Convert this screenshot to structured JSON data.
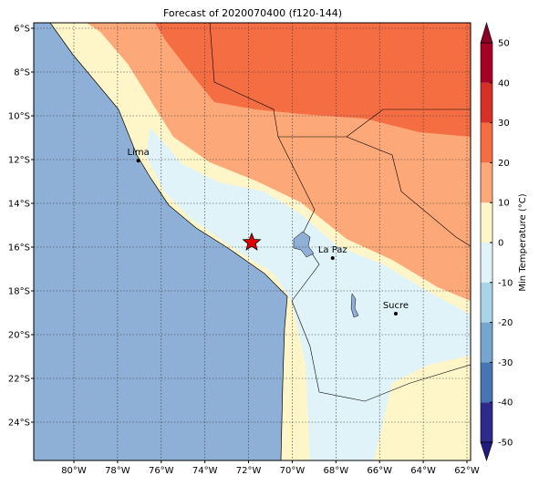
{
  "title": "Forecast of 2020070400 (f120-144)",
  "map": {
    "lon_ticks": [
      {
        "value": -80,
        "label": "80°W"
      },
      {
        "value": -78,
        "label": "78°W"
      },
      {
        "value": -76,
        "label": "76°W"
      },
      {
        "value": -74,
        "label": "74°W"
      },
      {
        "value": -72,
        "label": "72°W"
      },
      {
        "value": -70,
        "label": "70°W"
      },
      {
        "value": -68,
        "label": "68°W"
      },
      {
        "value": -66,
        "label": "66°W"
      },
      {
        "value": -64,
        "label": "64°W"
      },
      {
        "value": -62,
        "label": "62°W"
      }
    ],
    "lat_ticks": [
      {
        "value": -6,
        "label": "6°S"
      },
      {
        "value": -8,
        "label": "8°S"
      },
      {
        "value": -10,
        "label": "10°S"
      },
      {
        "value": -12,
        "label": "12°S"
      },
      {
        "value": -14,
        "label": "14°S"
      },
      {
        "value": -16,
        "label": "16°S"
      },
      {
        "value": -18,
        "label": "18°S"
      },
      {
        "value": -20,
        "label": "20°S"
      },
      {
        "value": -22,
        "label": "22°S"
      },
      {
        "value": -24,
        "label": "24°S"
      }
    ],
    "cities": [
      {
        "name": "Lima",
        "lon": -77.05,
        "lat": -12.05
      },
      {
        "name": "La Paz",
        "lon": -68.15,
        "lat": -16.5
      },
      {
        "name": "Sucre",
        "lon": -65.26,
        "lat": -19.04
      }
    ]
  },
  "colorbar": {
    "label": "Min Temperature (°C)",
    "ticks": [
      -50,
      -40,
      -30,
      -20,
      -10,
      0,
      10,
      20,
      30,
      40,
      50
    ],
    "colors": [
      "#2c2a8a",
      "#4575b4",
      "#74a6cf",
      "#a9d3e6",
      "#e0f3f8",
      "#fef6c9",
      "#fca878",
      "#f46d43",
      "#d73027",
      "#a50026"
    ],
    "extend_low": "#1f1b80",
    "extend_high": "#8a0026"
  }
}
